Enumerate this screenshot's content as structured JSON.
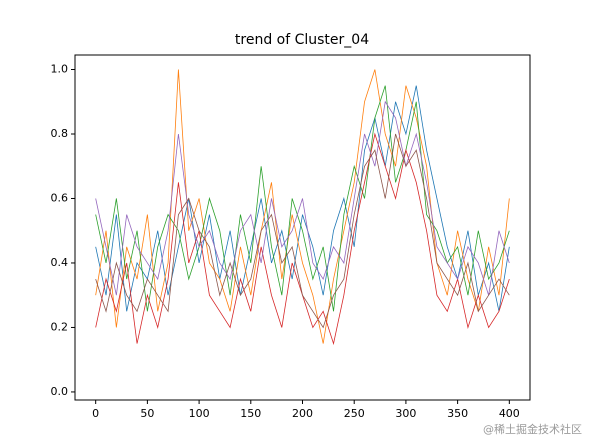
{
  "chart_data": {
    "type": "line",
    "title": "trend of Cluster_04",
    "x": [
      0,
      10,
      20,
      30,
      40,
      50,
      60,
      70,
      80,
      90,
      100,
      110,
      120,
      130,
      140,
      150,
      160,
      170,
      180,
      190,
      200,
      210,
      220,
      230,
      240,
      250,
      260,
      270,
      280,
      290,
      300,
      310,
      320,
      330,
      340,
      350,
      360,
      370,
      380,
      390,
      400
    ],
    "series": [
      {
        "color": "#1f77b4",
        "values": [
          0.45,
          0.3,
          0.55,
          0.25,
          0.4,
          0.35,
          0.5,
          0.3,
          0.45,
          0.6,
          0.4,
          0.55,
          0.35,
          0.5,
          0.3,
          0.45,
          0.6,
          0.4,
          0.5,
          0.35,
          0.55,
          0.45,
          0.3,
          0.5,
          0.6,
          0.45,
          0.75,
          0.85,
          0.7,
          0.9,
          0.8,
          0.95,
          0.75,
          0.6,
          0.45,
          0.35,
          0.5,
          0.3,
          0.4,
          0.25,
          0.45
        ]
      },
      {
        "color": "#ff7f0e",
        "values": [
          0.3,
          0.5,
          0.2,
          0.45,
          0.35,
          0.55,
          0.25,
          0.4,
          1.0,
          0.5,
          0.6,
          0.4,
          0.35,
          0.25,
          0.45,
          0.3,
          0.5,
          0.65,
          0.35,
          0.55,
          0.4,
          0.3,
          0.15,
          0.35,
          0.5,
          0.65,
          0.9,
          1.0,
          0.8,
          0.7,
          0.95,
          0.85,
          0.7,
          0.4,
          0.3,
          0.5,
          0.35,
          0.25,
          0.45,
          0.3,
          0.6
        ]
      },
      {
        "color": "#2ca02c",
        "values": [
          0.55,
          0.4,
          0.6,
          0.35,
          0.5,
          0.25,
          0.45,
          0.55,
          0.5,
          0.35,
          0.45,
          0.6,
          0.5,
          0.3,
          0.55,
          0.4,
          0.7,
          0.45,
          0.3,
          0.6,
          0.5,
          0.35,
          0.45,
          0.25,
          0.55,
          0.7,
          0.6,
          0.85,
          0.95,
          0.65,
          0.75,
          0.9,
          0.55,
          0.5,
          0.4,
          0.45,
          0.3,
          0.5,
          0.35,
          0.4,
          0.5
        ]
      },
      {
        "color": "#d62728",
        "values": [
          0.2,
          0.35,
          0.25,
          0.4,
          0.15,
          0.3,
          0.2,
          0.35,
          0.65,
          0.4,
          0.5,
          0.3,
          0.25,
          0.2,
          0.35,
          0.25,
          0.45,
          0.3,
          0.2,
          0.4,
          0.3,
          0.2,
          0.25,
          0.15,
          0.3,
          0.5,
          0.65,
          0.8,
          0.7,
          0.6,
          0.75,
          0.65,
          0.5,
          0.3,
          0.25,
          0.35,
          0.2,
          0.3,
          0.2,
          0.25,
          0.35
        ]
      },
      {
        "color": "#9467bd",
        "values": [
          0.6,
          0.45,
          0.3,
          0.55,
          0.45,
          0.4,
          0.35,
          0.5,
          0.8,
          0.55,
          0.45,
          0.5,
          0.4,
          0.35,
          0.5,
          0.55,
          0.4,
          0.6,
          0.45,
          0.5,
          0.6,
          0.4,
          0.35,
          0.45,
          0.4,
          0.6,
          0.8,
          0.7,
          0.9,
          0.85,
          0.7,
          0.8,
          0.65,
          0.45,
          0.4,
          0.35,
          0.45,
          0.4,
          0.3,
          0.5,
          0.4
        ]
      },
      {
        "color": "#8c564b",
        "values": [
          0.35,
          0.25,
          0.4,
          0.3,
          0.25,
          0.35,
          0.3,
          0.25,
          0.55,
          0.6,
          0.5,
          0.45,
          0.3,
          0.4,
          0.3,
          0.35,
          0.5,
          0.55,
          0.4,
          0.45,
          0.3,
          0.25,
          0.2,
          0.3,
          0.35,
          0.55,
          0.7,
          0.75,
          0.6,
          0.8,
          0.7,
          0.75,
          0.6,
          0.4,
          0.35,
          0.3,
          0.4,
          0.25,
          0.3,
          0.35,
          0.3
        ]
      }
    ],
    "xlim": [
      -20,
      420
    ],
    "ylim": [
      -0.025,
      1.045
    ],
    "xticks": [
      0,
      50,
      100,
      150,
      200,
      250,
      300,
      350,
      400
    ],
    "yticks": [
      {
        "value": 0,
        "label": "0.0"
      },
      0.2,
      0.4,
      0.6,
      0.8,
      {
        "value": 1,
        "label": "1.0"
      }
    ],
    "watermark": "@稀土掘金技术社区"
  }
}
